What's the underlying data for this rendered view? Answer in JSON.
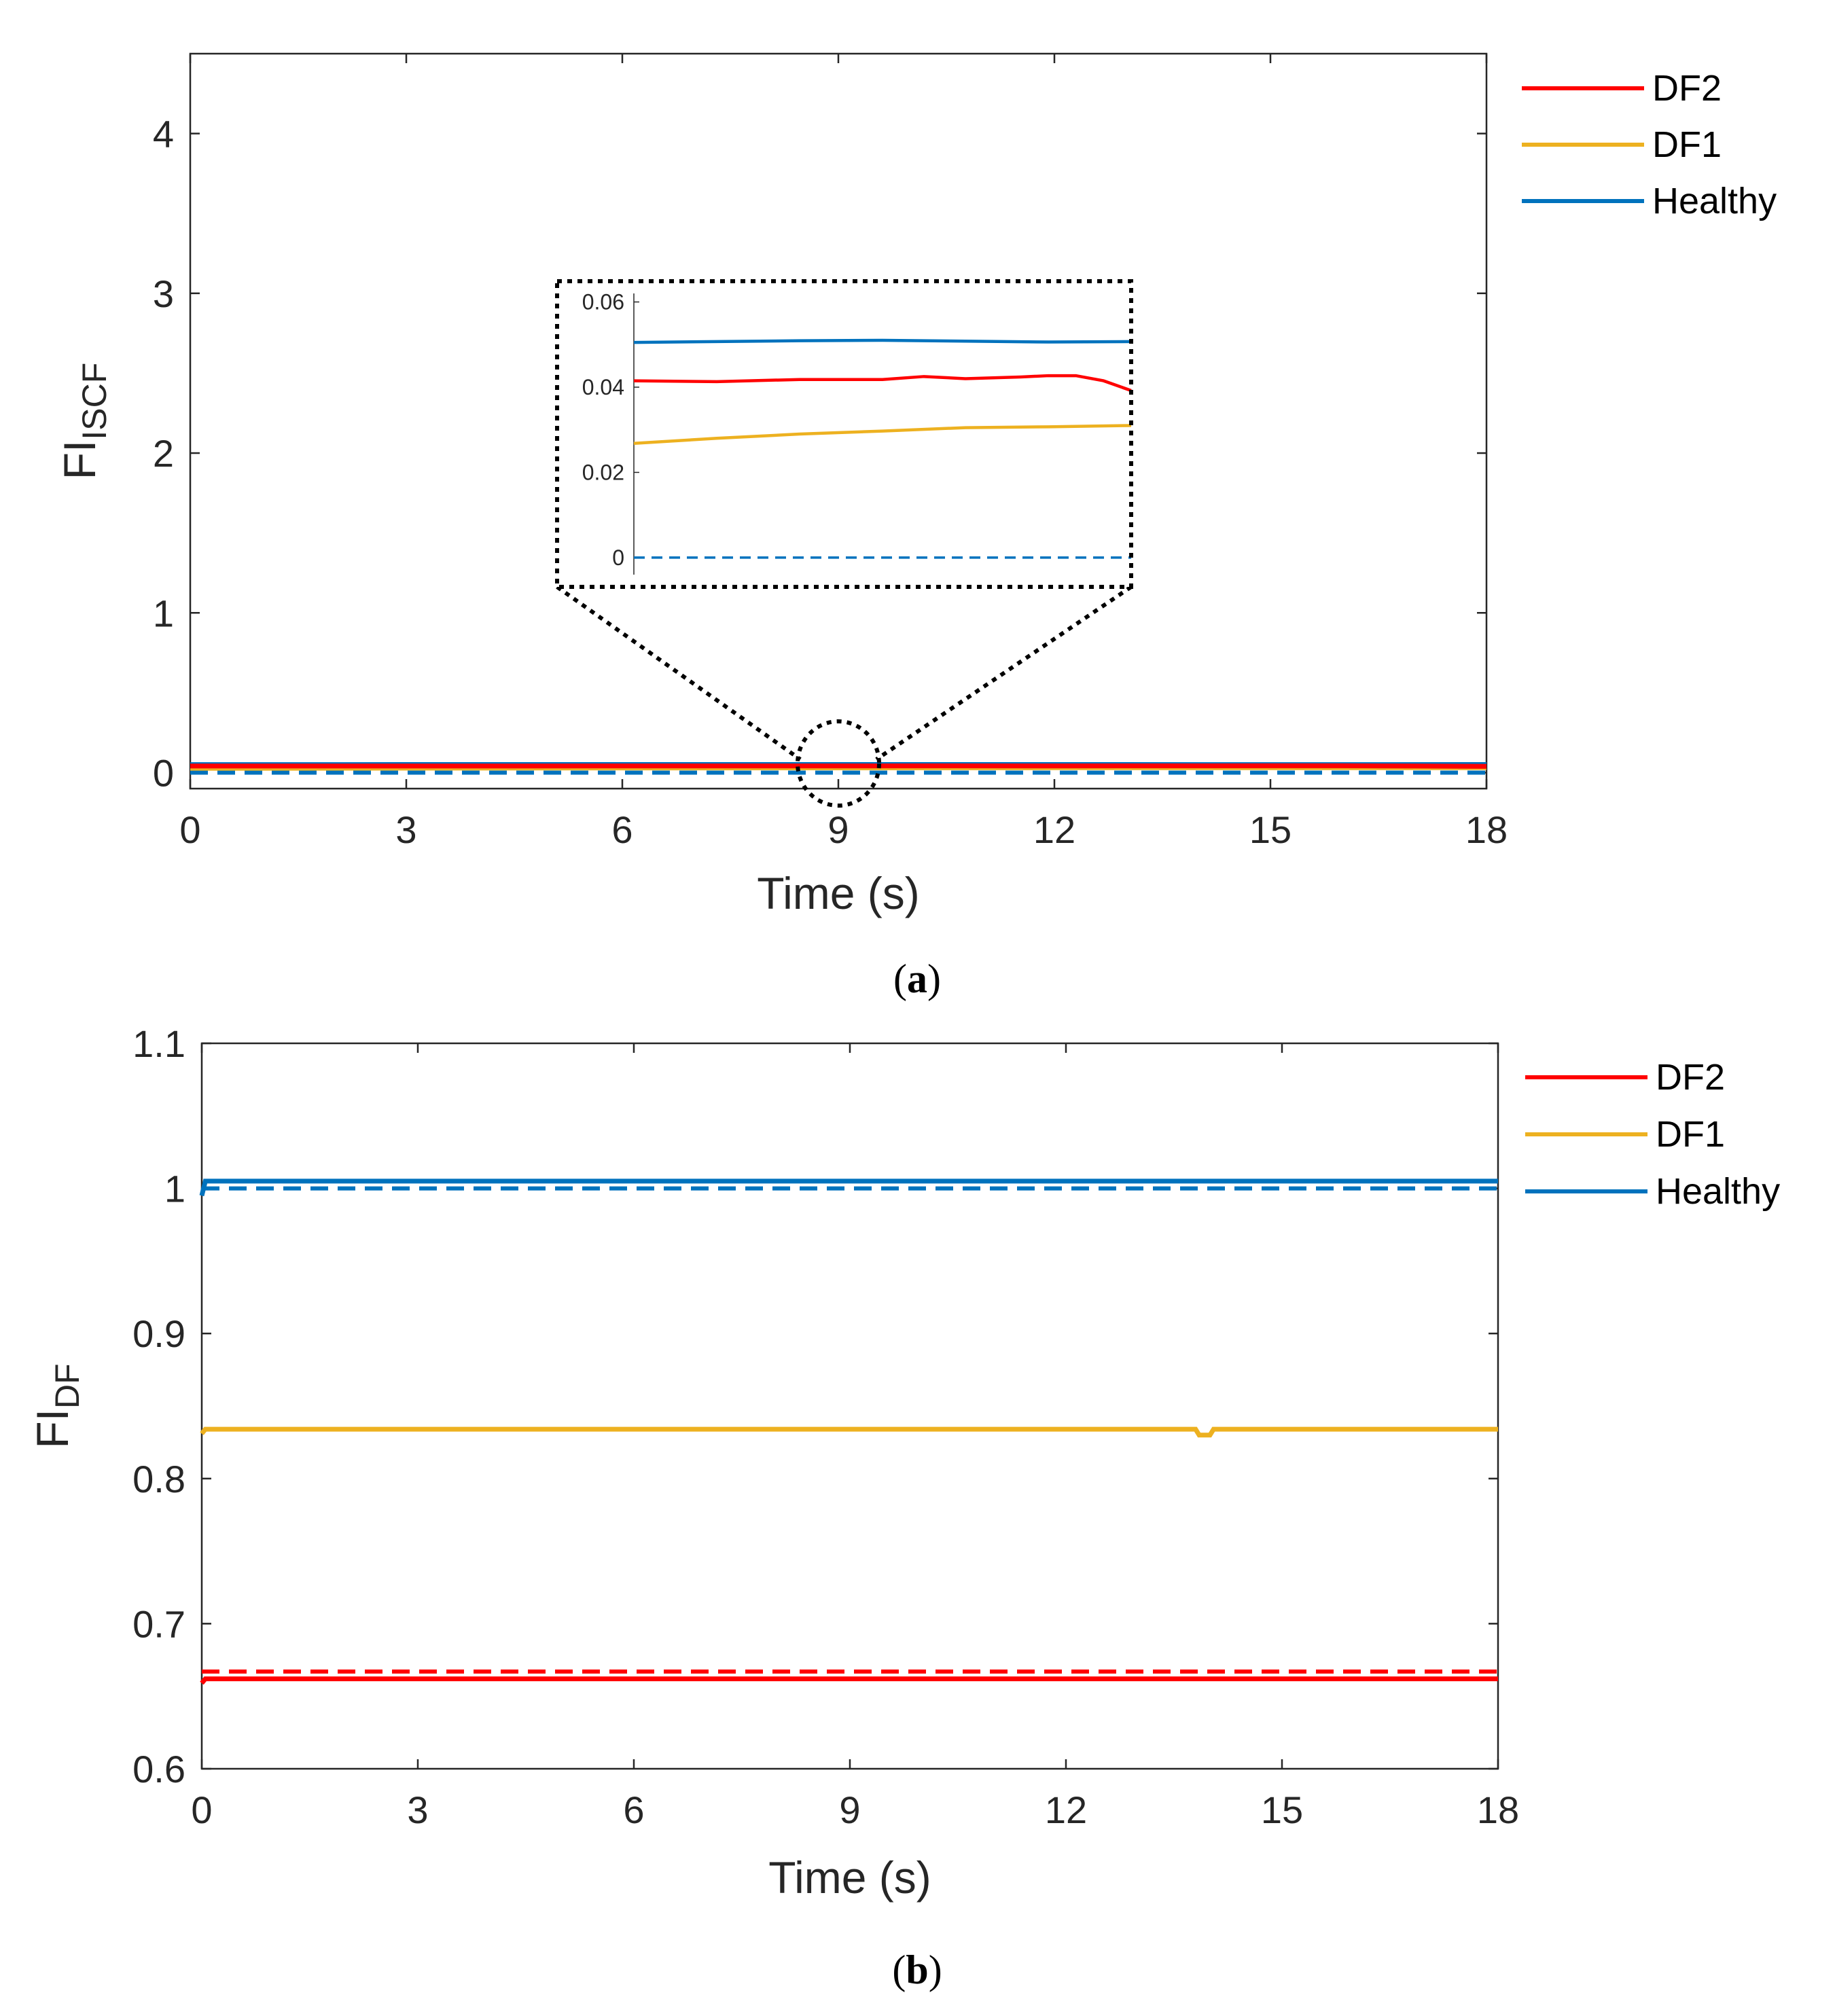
{
  "colors": {
    "DF2": "#ff0000",
    "DF1": "#edb120",
    "Healthy": "#0072bd",
    "axis": "#262626"
  },
  "chart_data": [
    {
      "type": "line",
      "panel": "a",
      "caption_open": "(",
      "caption_letter": "a",
      "caption_close": ")",
      "xlabel": "Time (s)",
      "ylabel_main": "FI",
      "ylabel_sub": "ISCF",
      "xlim": [
        0,
        18
      ],
      "ylim": [
        -0.1,
        4.5
      ],
      "xticks": [
        0,
        3,
        6,
        9,
        12,
        15,
        18
      ],
      "yticks": [
        0,
        1,
        2,
        3,
        4
      ],
      "legend": {
        "position": "outside-top-right",
        "entries": [
          "DF2",
          "DF1",
          "Healthy"
        ]
      },
      "series": [
        {
          "name": "DF2",
          "x": [
            0,
            3,
            6,
            9,
            10.5,
            12,
            13,
            14,
            15,
            16,
            17,
            18
          ],
          "y": [
            0.0415,
            0.0413,
            0.0418,
            0.0418,
            0.0425,
            0.042,
            0.0422,
            0.0424,
            0.0427,
            0.0427,
            0.0415,
            0.0392
          ]
        },
        {
          "name": "DF1",
          "x": [
            0,
            3,
            6,
            9,
            12,
            15,
            18
          ],
          "y": [
            0.0268,
            0.028,
            0.029,
            0.0297,
            0.0305,
            0.0307,
            0.031
          ]
        },
        {
          "name": "Healthy",
          "x": [
            0,
            3,
            6,
            9,
            12,
            15,
            18
          ],
          "y": [
            0.0505,
            0.0507,
            0.0509,
            0.051,
            0.0508,
            0.0506,
            0.0507
          ]
        }
      ],
      "reference_lines": [
        {
          "name": "Healthy",
          "value": 0,
          "style": "dashed"
        }
      ],
      "inset": {
        "ylim": [
          -0.004,
          0.062
        ],
        "yticks": [
          0,
          0.02,
          0.04,
          0.06
        ],
        "ytick_labels": [
          "0",
          "0.02",
          "0.04",
          "0.06"
        ],
        "zoom_center": [
          9,
          0
        ]
      }
    },
    {
      "type": "line",
      "panel": "b",
      "caption_open": "(",
      "caption_letter": "b",
      "caption_close": ")",
      "xlabel": "Time (s)",
      "ylabel_main": "FI",
      "ylabel_sub": "DF",
      "xlim": [
        0,
        18
      ],
      "ylim": [
        0.6,
        1.1
      ],
      "xticks": [
        0,
        3,
        6,
        9,
        12,
        15,
        18
      ],
      "yticks": [
        0.6,
        0.7,
        0.8,
        0.9,
        1,
        1.1
      ],
      "ytick_labels": [
        "0.6",
        "0.7",
        "0.8",
        "0.9",
        "1",
        "1.1"
      ],
      "legend": {
        "position": "outside-top-right",
        "entries": [
          "DF2",
          "DF1",
          "Healthy"
        ]
      },
      "series": [
        {
          "name": "DF2",
          "x": [
            0,
            0.05,
            3,
            6,
            9,
            12,
            15,
            18
          ],
          "y": [
            0.659,
            0.662,
            0.662,
            0.662,
            0.662,
            0.662,
            0.662,
            0.662
          ]
        },
        {
          "name": "DF1",
          "x": [
            0,
            0.05,
            3,
            6,
            9,
            12,
            13.8,
            13.85,
            14.0,
            14.05,
            15,
            18
          ],
          "y": [
            0.831,
            0.834,
            0.834,
            0.834,
            0.834,
            0.834,
            0.834,
            0.83,
            0.83,
            0.834,
            0.834,
            0.834
          ]
        },
        {
          "name": "Healthy",
          "x": [
            0,
            0.05,
            3,
            6,
            9,
            12,
            15,
            18
          ],
          "y": [
            0.995,
            1.005,
            1.005,
            1.005,
            1.005,
            1.005,
            1.005,
            1.005
          ]
        }
      ],
      "reference_lines": [
        {
          "name": "Healthy",
          "value": 1,
          "style": "dashed"
        },
        {
          "name": "DF2",
          "value": 0.667,
          "style": "dashed"
        }
      ]
    }
  ]
}
